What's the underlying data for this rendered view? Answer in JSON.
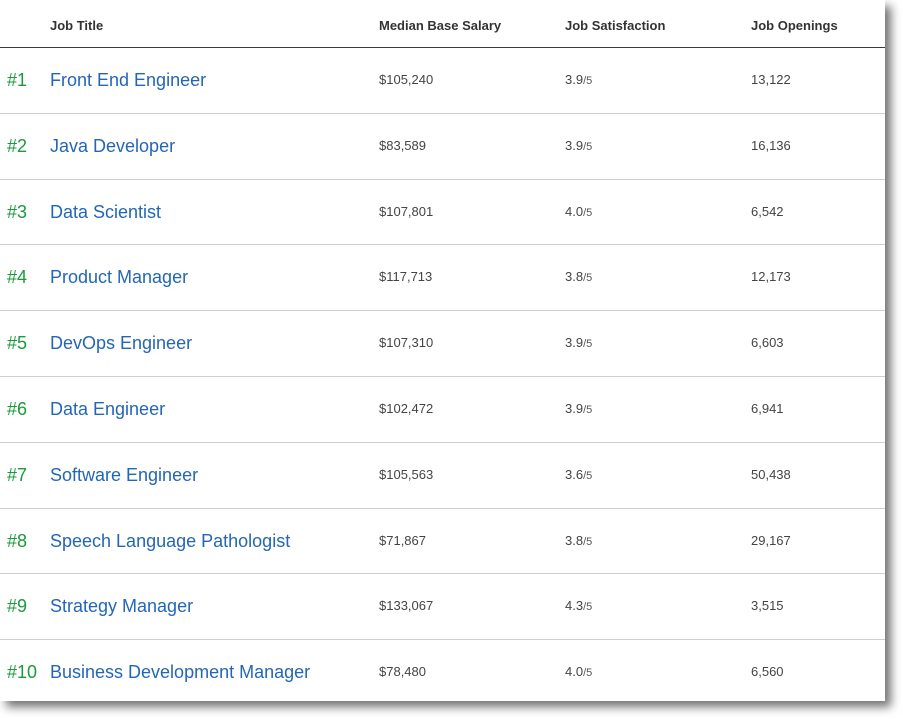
{
  "header": {
    "job_title": "Job Title",
    "median_base_salary": "Median Base Salary",
    "job_satisfaction": "Job Satisfaction",
    "job_openings": "Job Openings"
  },
  "rows": [
    {
      "rank": "#1",
      "title": "Front End Engineer",
      "salary": "$105,240",
      "satisfaction": "3.9",
      "satisfaction_max": "/5",
      "openings": "13,122"
    },
    {
      "rank": "#2",
      "title": "Java Developer",
      "salary": "$83,589",
      "satisfaction": "3.9",
      "satisfaction_max": "/5",
      "openings": "16,136"
    },
    {
      "rank": "#3",
      "title": "Data Scientist",
      "salary": "$107,801",
      "satisfaction": "4.0",
      "satisfaction_max": "/5",
      "openings": "6,542"
    },
    {
      "rank": "#4",
      "title": "Product Manager",
      "salary": "$117,713",
      "satisfaction": "3.8",
      "satisfaction_max": "/5",
      "openings": "12,173"
    },
    {
      "rank": "#5",
      "title": "DevOps Engineer",
      "salary": "$107,310",
      "satisfaction": "3.9",
      "satisfaction_max": "/5",
      "openings": "6,603"
    },
    {
      "rank": "#6",
      "title": "Data Engineer",
      "salary": "$102,472",
      "satisfaction": "3.9",
      "satisfaction_max": "/5",
      "openings": "6,941"
    },
    {
      "rank": "#7",
      "title": "Software Engineer",
      "salary": "$105,563",
      "satisfaction": "3.6",
      "satisfaction_max": "/5",
      "openings": "50,438"
    },
    {
      "rank": "#8",
      "title": "Speech Language Pathologist",
      "salary": "$71,867",
      "satisfaction": "3.8",
      "satisfaction_max": "/5",
      "openings": "29,167"
    },
    {
      "rank": "#9",
      "title": "Strategy Manager",
      "salary": "$133,067",
      "satisfaction": "4.3",
      "satisfaction_max": "/5",
      "openings": "3,515"
    },
    {
      "rank": "#10",
      "title": "Business Development Manager",
      "salary": "$78,480",
      "satisfaction": "4.0",
      "satisfaction_max": "/5",
      "openings": "6,560"
    }
  ],
  "colors": {
    "rank": "#1a9a3a",
    "title_link": "#2366b8",
    "header_text": "#333333"
  }
}
